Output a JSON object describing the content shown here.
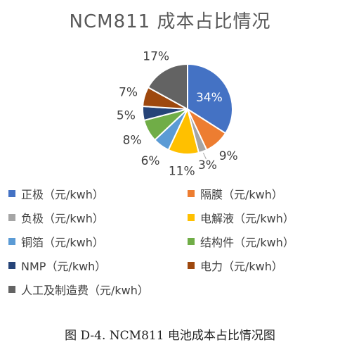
{
  "chart_data": {
    "type": "pie",
    "title": "NCM811 成本占比情况",
    "categories": [
      "正极（元/kwh）",
      "隔膜（元/kwh）",
      "负极（元/kwh）",
      "电解液（元/kwh）",
      "铜箔（元/kwh）",
      "结构件（元/kwh）",
      "NMP（元/kwh）",
      "电力（元/kwh）",
      "人工及制造费（元/kwh）"
    ],
    "values": [
      34,
      9,
      3,
      11,
      6,
      8,
      5,
      7,
      17
    ],
    "labels": [
      "34%",
      "9%",
      "3%",
      "11%",
      "6%",
      "8%",
      "5%",
      "7%",
      "17%"
    ],
    "colors": [
      "#4472C4",
      "#ED7D31",
      "#A5A5A5",
      "#FFC000",
      "#5B9BD5",
      "#70AD47",
      "#264478",
      "#9E480E",
      "#636363"
    ],
    "legend_position": "bottom"
  },
  "caption": "图 D-4. NCM811 电池成本占比情况图"
}
